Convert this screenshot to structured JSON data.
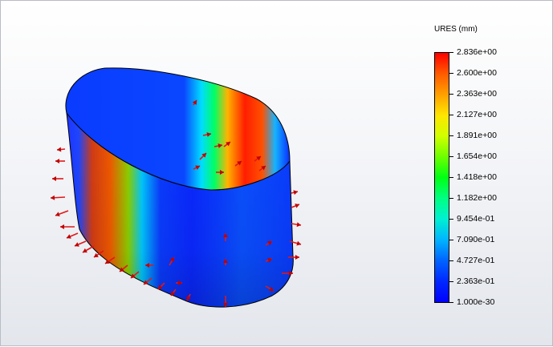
{
  "legend": {
    "title": "URES (mm)",
    "labels": [
      "2.836e+00",
      "2.600e+00",
      "2.363e+00",
      "2.127e+00",
      "1.891e+00",
      "1.654e+00",
      "1.418e+00",
      "1.182e+00",
      "9.454e-01",
      "7.090e-01",
      "4.727e-01",
      "2.363e-01",
      "1.000e-30"
    ],
    "colors": [
      "#ff0000",
      "#ff5a00",
      "#ffa000",
      "#ffe600",
      "#d2ff00",
      "#6eff00",
      "#00ff14",
      "#00ff82",
      "#00f0d2",
      "#00b4ff",
      "#0064ff",
      "#0028ff",
      "#0000ff"
    ]
  },
  "model": {
    "surface_gradient_stops": [
      {
        "offset": 0,
        "color": "#1e32ff"
      },
      {
        "offset": 0.06,
        "color": "#1e46ff"
      },
      {
        "offset": 0.12,
        "color": "#d23c14"
      },
      {
        "offset": 0.2,
        "color": "#f05a00"
      },
      {
        "offset": 0.28,
        "color": "#8cd000"
      },
      {
        "offset": 0.34,
        "color": "#00c8ff"
      },
      {
        "offset": 0.42,
        "color": "#0a3cff"
      },
      {
        "offset": 0.56,
        "color": "#0a28ff"
      },
      {
        "offset": 0.68,
        "color": "#0a3cff"
      },
      {
        "offset": 0.78,
        "color": "#0a50ff"
      },
      {
        "offset": 1,
        "color": "#0a3cff"
      }
    ],
    "inner_gradient_stops": [
      {
        "offset": 0,
        "color": "#0a3cff"
      },
      {
        "offset": 0.52,
        "color": "#0a46ff"
      },
      {
        "offset": 0.6,
        "color": "#00dcff"
      },
      {
        "offset": 0.66,
        "color": "#00ff64"
      },
      {
        "offset": 0.72,
        "color": "#ffb400"
      },
      {
        "offset": 0.8,
        "color": "#ff1e00"
      },
      {
        "offset": 0.88,
        "color": "#ff5000"
      },
      {
        "offset": 0.94,
        "color": "#14b4ff"
      },
      {
        "offset": 1,
        "color": "#0a3cff"
      }
    ],
    "arrow_color": "#e01818",
    "arrow_head_color": "#c00000"
  }
}
